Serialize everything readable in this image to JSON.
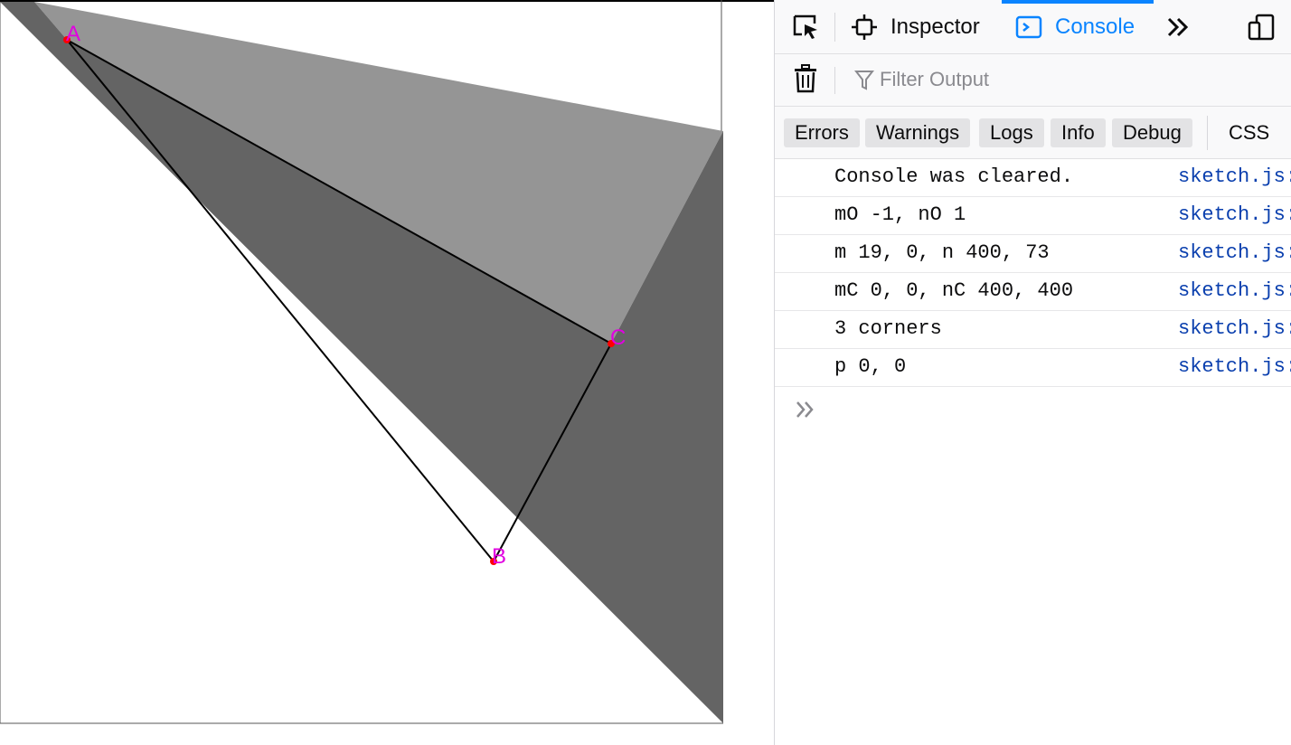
{
  "sketch": {
    "labels": {
      "a": "A",
      "b": "B",
      "c": "C"
    },
    "colors": {
      "light_shape": "#959595",
      "dark_shape": "#646464",
      "point": "#ff0000",
      "label": "#e100e1",
      "line": "#000000"
    }
  },
  "devtools": {
    "toolbar": {
      "inspector_label": "Inspector",
      "console_label": "Console",
      "accent_color": "#0a84ff"
    },
    "filter": {
      "placeholder": "Filter Output"
    },
    "levels": {
      "errors": "Errors",
      "warnings": "Warnings",
      "logs": "Logs",
      "info": "Info",
      "debug": "Debug",
      "css": "CSS"
    },
    "messages": [
      {
        "text": "Console was cleared.",
        "source": "sketch.js:"
      },
      {
        "text": "mO -1, nO 1",
        "source": "sketch.js:"
      },
      {
        "text": "m 19, 0, n 400, 73",
        "source": "sketch.js:"
      },
      {
        "text": "mC 0, 0, nC 400, 400",
        "source": "sketch.js:"
      },
      {
        "text": "3 corners",
        "source": "sketch.js:"
      },
      {
        "text": "p 0, 0",
        "source": "sketch.js:"
      }
    ],
    "icons": {
      "picker": "element-picker-icon",
      "inspector": "inspector-icon",
      "console": "console-icon",
      "more": "chevron-double-right-icon",
      "responsive": "responsive-design-icon",
      "trash": "trash-icon",
      "filter": "filter-icon",
      "prompt": "prompt-chevron-icon"
    }
  }
}
